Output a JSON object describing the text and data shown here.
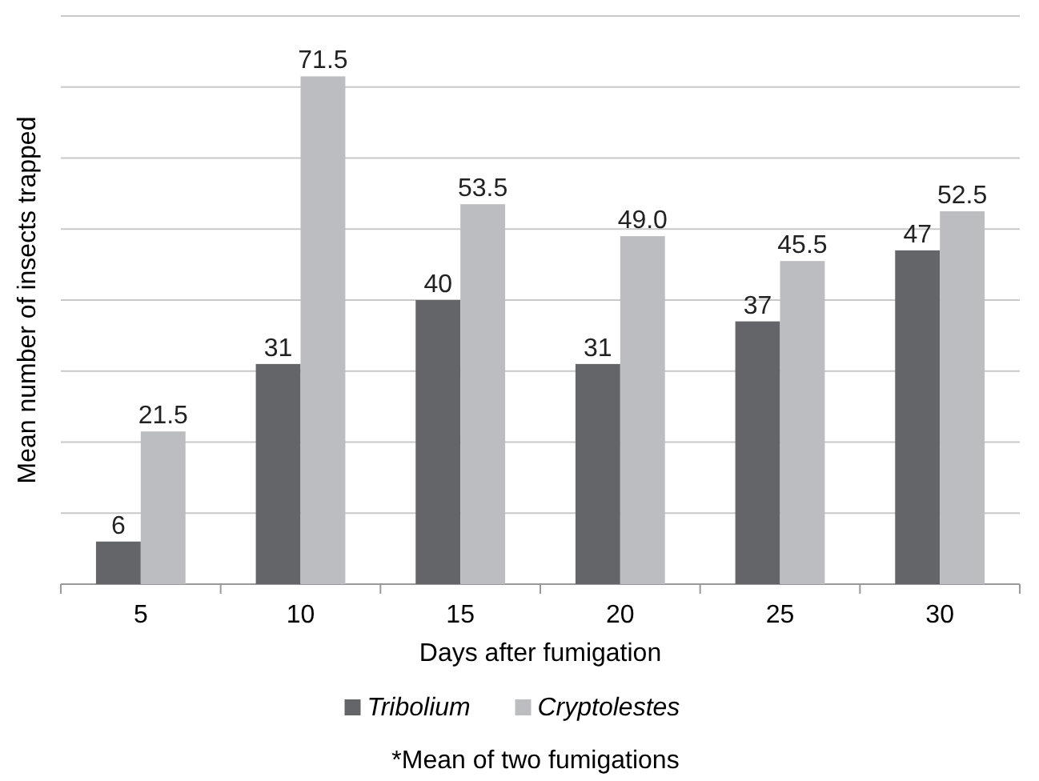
{
  "chart_data": {
    "type": "bar",
    "categories": [
      "5",
      "10",
      "15",
      "20",
      "25",
      "30"
    ],
    "series": [
      {
        "name": "Tribolium",
        "color": "#646569",
        "values": [
          6,
          31,
          40,
          31,
          37,
          47
        ],
        "value_labels": [
          "6",
          "31",
          "40",
          "31",
          "37",
          "47"
        ]
      },
      {
        "name": "Cryptolestes",
        "color": "#bcbdc0",
        "values": [
          21.5,
          71.5,
          53.5,
          49.0,
          45.5,
          52.5
        ],
        "value_labels": [
          "21.5",
          "71.5",
          "53.5",
          "49.0",
          "45.5",
          "52.5"
        ]
      }
    ],
    "xlabel": "Days after fumigation",
    "ylabel": "Mean number of insects trapped",
    "ylim": [
      0,
      80
    ],
    "yticks": [
      {
        "value": 0,
        "label": null
      },
      {
        "value": 10,
        "label": null
      },
      {
        "value": 20,
        "label": null
      },
      {
        "value": 30,
        "label": null
      },
      {
        "value": 40,
        "label": null
      },
      {
        "value": 50,
        "label": null
      },
      {
        "value": 60,
        "label": null
      },
      {
        "value": 70,
        "label": null
      },
      {
        "value": 80,
        "label": null
      }
    ],
    "tick_labels": "x",
    "grid": "y",
    "legend": "bottom",
    "annotations": [
      "*Mean of two fumigations"
    ]
  }
}
